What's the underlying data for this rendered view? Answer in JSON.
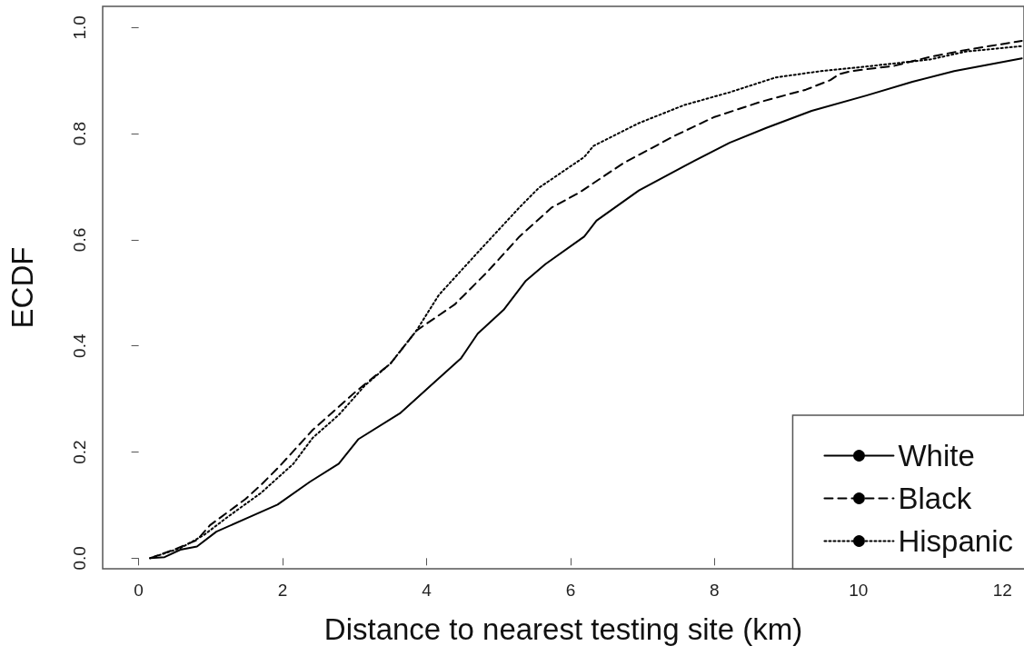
{
  "chart_data": {
    "type": "line",
    "xlabel": "Distance to nearest testing site (km)",
    "ylabel": "ECDF",
    "xlim": [
      -0.5,
      12.3
    ],
    "xticks": [
      0,
      2,
      4,
      6,
      8,
      10,
      12
    ],
    "ylim": [
      -0.02,
      1.04
    ],
    "yticks": [
      {
        "value": 0,
        "label": "0.0"
      },
      {
        "value": 0.2,
        "label": "0.2"
      },
      {
        "value": 0.4,
        "label": "0.4"
      },
      {
        "value": 0.6,
        "label": "0.6"
      },
      {
        "value": 0.8,
        "label": "0.8"
      },
      {
        "value": 1,
        "label": "1.0"
      }
    ],
    "grid": false,
    "legend": "bottom right",
    "marker": "none",
    "series": [
      {
        "name": "White",
        "color": "#000000",
        "line_style": "solid",
        "x": [
          0.16,
          0.36,
          0.58,
          0.81,
          1.08,
          1.53,
          1.93,
          2.38,
          2.78,
          3.05,
          3.63,
          4.08,
          4.48,
          4.71,
          5.07,
          5.38,
          5.65,
          6.19,
          6.36,
          6.95,
          7.58,
          8.21,
          8.72,
          9.35,
          10.11,
          10.75,
          11.33,
          12.27
        ],
        "values": [
          0,
          0.002,
          0.016,
          0.022,
          0.05,
          0.077,
          0.101,
          0.144,
          0.178,
          0.224,
          0.273,
          0.328,
          0.377,
          0.423,
          0.468,
          0.523,
          0.554,
          0.606,
          0.636,
          0.693,
          0.739,
          0.783,
          0.811,
          0.843,
          0.872,
          0.898,
          0.918,
          0.942
        ]
      },
      {
        "name": "Black",
        "color": "#000000",
        "line_style": "dashed",
        "x": [
          0.16,
          0.49,
          0.81,
          0.99,
          1.48,
          1.7,
          1.97,
          2.42,
          3.0,
          3.5,
          3.86,
          4.39,
          4.84,
          5.29,
          5.74,
          6.11,
          6.74,
          7.46,
          7.99,
          8.64,
          9.27,
          9.61,
          9.73,
          9.9,
          10.5,
          11.0,
          11.5,
          12.27
        ],
        "values": [
          0,
          0.016,
          0.034,
          0.062,
          0.111,
          0.138,
          0.175,
          0.242,
          0.312,
          0.367,
          0.429,
          0.478,
          0.539,
          0.606,
          0.661,
          0.688,
          0.745,
          0.797,
          0.831,
          0.86,
          0.883,
          0.901,
          0.912,
          0.918,
          0.928,
          0.945,
          0.958,
          0.975
        ]
      },
      {
        "name": "Hispanic",
        "color": "#000000",
        "line_style": "dotted",
        "x": [
          0.16,
          0.58,
          0.9,
          1.26,
          1.7,
          2.15,
          2.42,
          2.78,
          3.14,
          3.5,
          3.86,
          4.17,
          4.75,
          5.29,
          5.56,
          5.68,
          6.19,
          6.32,
          6.95,
          7.58,
          8.21,
          8.85,
          9.48,
          10.0,
          11.0,
          11.5,
          12.27
        ],
        "values": [
          0,
          0.019,
          0.043,
          0.08,
          0.123,
          0.178,
          0.227,
          0.27,
          0.325,
          0.367,
          0.429,
          0.496,
          0.582,
          0.661,
          0.698,
          0.709,
          0.756,
          0.777,
          0.82,
          0.854,
          0.878,
          0.906,
          0.918,
          0.925,
          0.94,
          0.955,
          0.965
        ]
      }
    ]
  }
}
